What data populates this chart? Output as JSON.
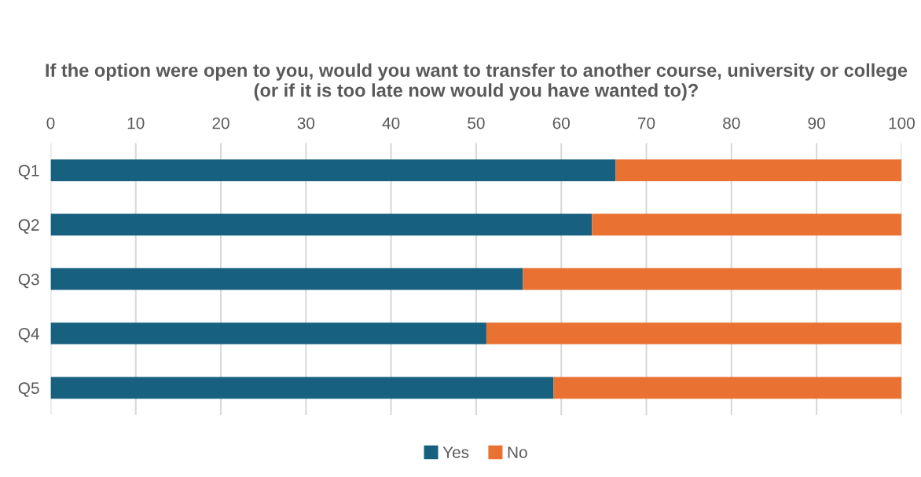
{
  "chart_data": {
    "type": "bar",
    "orientation": "horizontal",
    "stacked": true,
    "title": "If the option were open to you, would you want to transfer to another course, university or college (or if it is too late now would you have wanted to)?",
    "categories": [
      "Q1",
      "Q2",
      "Q3",
      "Q4",
      "Q5"
    ],
    "series": [
      {
        "name": "Yes",
        "color": "#17607f",
        "values": [
          66.4,
          63.6,
          55.5,
          51.2,
          59.1
        ]
      },
      {
        "name": "No",
        "color": "#e97132",
        "values": [
          33.6,
          36.4,
          44.5,
          48.8,
          40.9
        ]
      }
    ],
    "xlim": [
      0,
      100
    ],
    "xticks": [
      0,
      10,
      20,
      30,
      40,
      50,
      60,
      70,
      80,
      90,
      100
    ],
    "grid": "x",
    "legend": "bottom"
  }
}
